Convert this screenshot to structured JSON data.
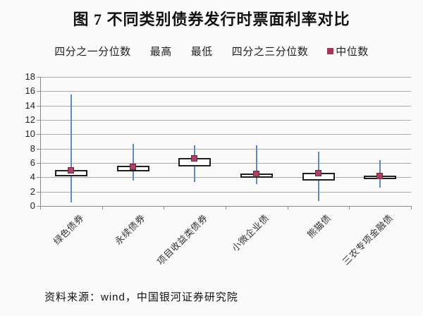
{
  "title": "图 7  不同类别债券发行时票面利率对比",
  "legend": {
    "items": [
      {
        "label": "四分之一分位数",
        "marker": null
      },
      {
        "label": "最高",
        "marker": null
      },
      {
        "label": "最低",
        "marker": null
      },
      {
        "label": "四分之三分位数",
        "marker": null
      },
      {
        "label": "中位数",
        "marker": "#9e3a56"
      }
    ]
  },
  "source": "资料来源：wind，中国银河证券研究院",
  "colors": {
    "whisker": "#6189bd",
    "box_border": "#1f1f1f",
    "box_fill": "#fdfdfd",
    "median_fill": "#a64462",
    "median_border": "#70253d",
    "gridline": "#ababab",
    "axis": "#8a8a8a"
  },
  "chart_data": {
    "type": "boxplot",
    "title": "图 7  不同类别债券发行时票面利率对比",
    "categories": [
      "绿色债券",
      "永续债券",
      "项目收益类债券",
      "小微企业债",
      "熊猫债",
      "三农专项金融债"
    ],
    "series": [
      {
        "name": "最低",
        "role": "min",
        "values": [
          0.5,
          3.5,
          3.3,
          3.0,
          0.7,
          2.6
        ]
      },
      {
        "name": "四分之一分位数",
        "role": "q1",
        "values": [
          4.1,
          4.8,
          5.5,
          3.9,
          3.5,
          3.7
        ]
      },
      {
        "name": "中位数",
        "role": "median",
        "values": [
          4.9,
          5.4,
          6.6,
          4.4,
          4.5,
          4.1
        ]
      },
      {
        "name": "四分之三分位数",
        "role": "q3",
        "values": [
          5.0,
          5.6,
          6.7,
          4.5,
          4.6,
          4.2
        ]
      },
      {
        "name": "最高",
        "role": "max",
        "values": [
          15.5,
          8.7,
          8.5,
          8.5,
          7.6,
          6.4
        ]
      }
    ],
    "xlabel": "",
    "ylabel": "",
    "ylim": [
      0,
      18
    ],
    "ytick_step": 2,
    "grid": true,
    "legend_position": "top"
  }
}
